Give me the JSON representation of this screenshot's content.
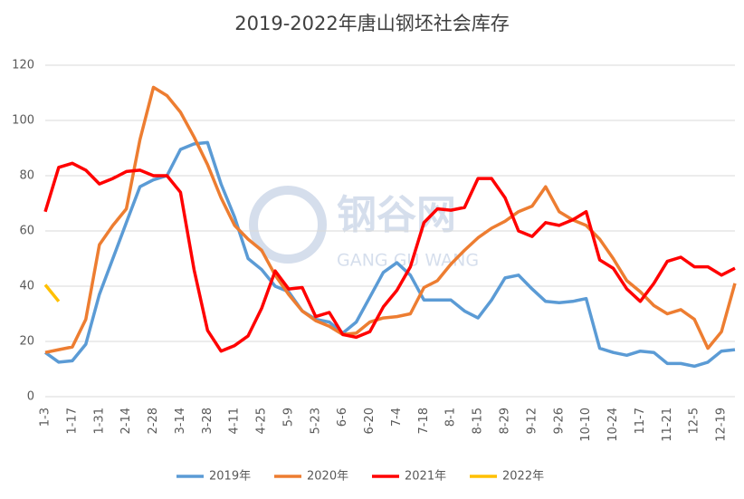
{
  "chart_data": {
    "type": "line",
    "title": "2019-2022年唐山钢坯社会库存",
    "watermark": [
      "钢谷网",
      "GANG GU WANG"
    ],
    "categories": [
      "1-3",
      null,
      "1-17",
      null,
      "1-31",
      null,
      "2-14",
      null,
      "2-28",
      null,
      "3-14",
      null,
      "3-28",
      null,
      "4-11",
      null,
      "4-25",
      null,
      "5-9",
      null,
      "5-23",
      null,
      "6-6",
      null,
      "6-20",
      null,
      "7-4",
      null,
      "7-18",
      null,
      "8-1",
      null,
      "8-15",
      null,
      "8-29",
      null,
      "9-12",
      null,
      "9-26",
      null,
      "10-10",
      null,
      "10-24",
      null,
      "11-7",
      null,
      "11-21",
      null,
      "12-5",
      null,
      "12-19",
      null
    ],
    "series": [
      {
        "name": "2019年",
        "color": "#5b9bd5",
        "values": [
          16,
          12.5,
          13,
          19,
          37,
          50,
          63,
          76,
          78.5,
          80,
          89.5,
          91.5,
          92,
          77,
          65,
          50,
          46,
          40,
          38,
          31,
          28,
          27,
          23,
          27,
          36,
          45,
          48.5,
          44,
          35,
          35,
          35,
          31,
          28.5,
          35,
          43,
          44,
          39,
          34.5,
          34,
          34.5,
          35.5,
          17.5,
          16,
          15,
          16.5,
          16,
          12,
          12,
          11,
          12.5,
          16.5,
          17
        ]
      },
      {
        "name": "2020年",
        "color": "#ed7d31",
        "values": [
          16,
          17,
          18,
          28,
          55,
          62,
          68,
          93,
          112,
          109,
          103,
          94,
          84,
          72,
          62,
          57,
          53,
          44,
          37,
          31,
          27.5,
          25.5,
          22.5,
          23,
          27,
          28.5,
          29,
          30,
          39.5,
          42,
          48,
          53,
          57.5,
          61,
          63.5,
          67,
          69,
          76,
          67,
          64,
          62,
          57,
          50,
          42,
          38,
          33,
          30,
          31.5,
          28,
          17.5,
          23.5,
          41
        ]
      },
      {
        "name": "2021年",
        "color": "#ff0000",
        "values": [
          67,
          83,
          84.5,
          82,
          77,
          79,
          81.5,
          82,
          80,
          80,
          74,
          46,
          24,
          16.5,
          18.5,
          22,
          32,
          45.5,
          39,
          39.5,
          29,
          30.5,
          22.5,
          21.5,
          23.5,
          32.5,
          38.5,
          47,
          63,
          68,
          67.5,
          68.5,
          79,
          79,
          72,
          60,
          58,
          63,
          62,
          64,
          67,
          49.5,
          46.5,
          39,
          34.5,
          41,
          49,
          50.5,
          47,
          47,
          44,
          46.5
        ]
      },
      {
        "name": "2022年",
        "color": "#ffc000",
        "values": [
          40.5,
          34.5,
          null,
          null,
          null,
          null,
          null,
          null,
          null,
          null,
          null,
          null,
          null,
          null,
          null,
          null,
          null,
          null,
          null,
          null,
          null,
          null,
          null,
          null,
          null,
          null,
          null,
          null,
          null,
          null,
          null,
          null,
          null,
          null,
          null,
          null,
          null,
          null,
          null,
          null,
          null,
          null,
          null,
          null,
          null,
          null,
          null,
          null,
          null,
          null,
          null,
          null
        ]
      }
    ],
    "ylim": [
      0,
      120
    ],
    "yticks": [
      0,
      20,
      40,
      60,
      80,
      100,
      120
    ],
    "grid": true,
    "legend": "bottom"
  }
}
